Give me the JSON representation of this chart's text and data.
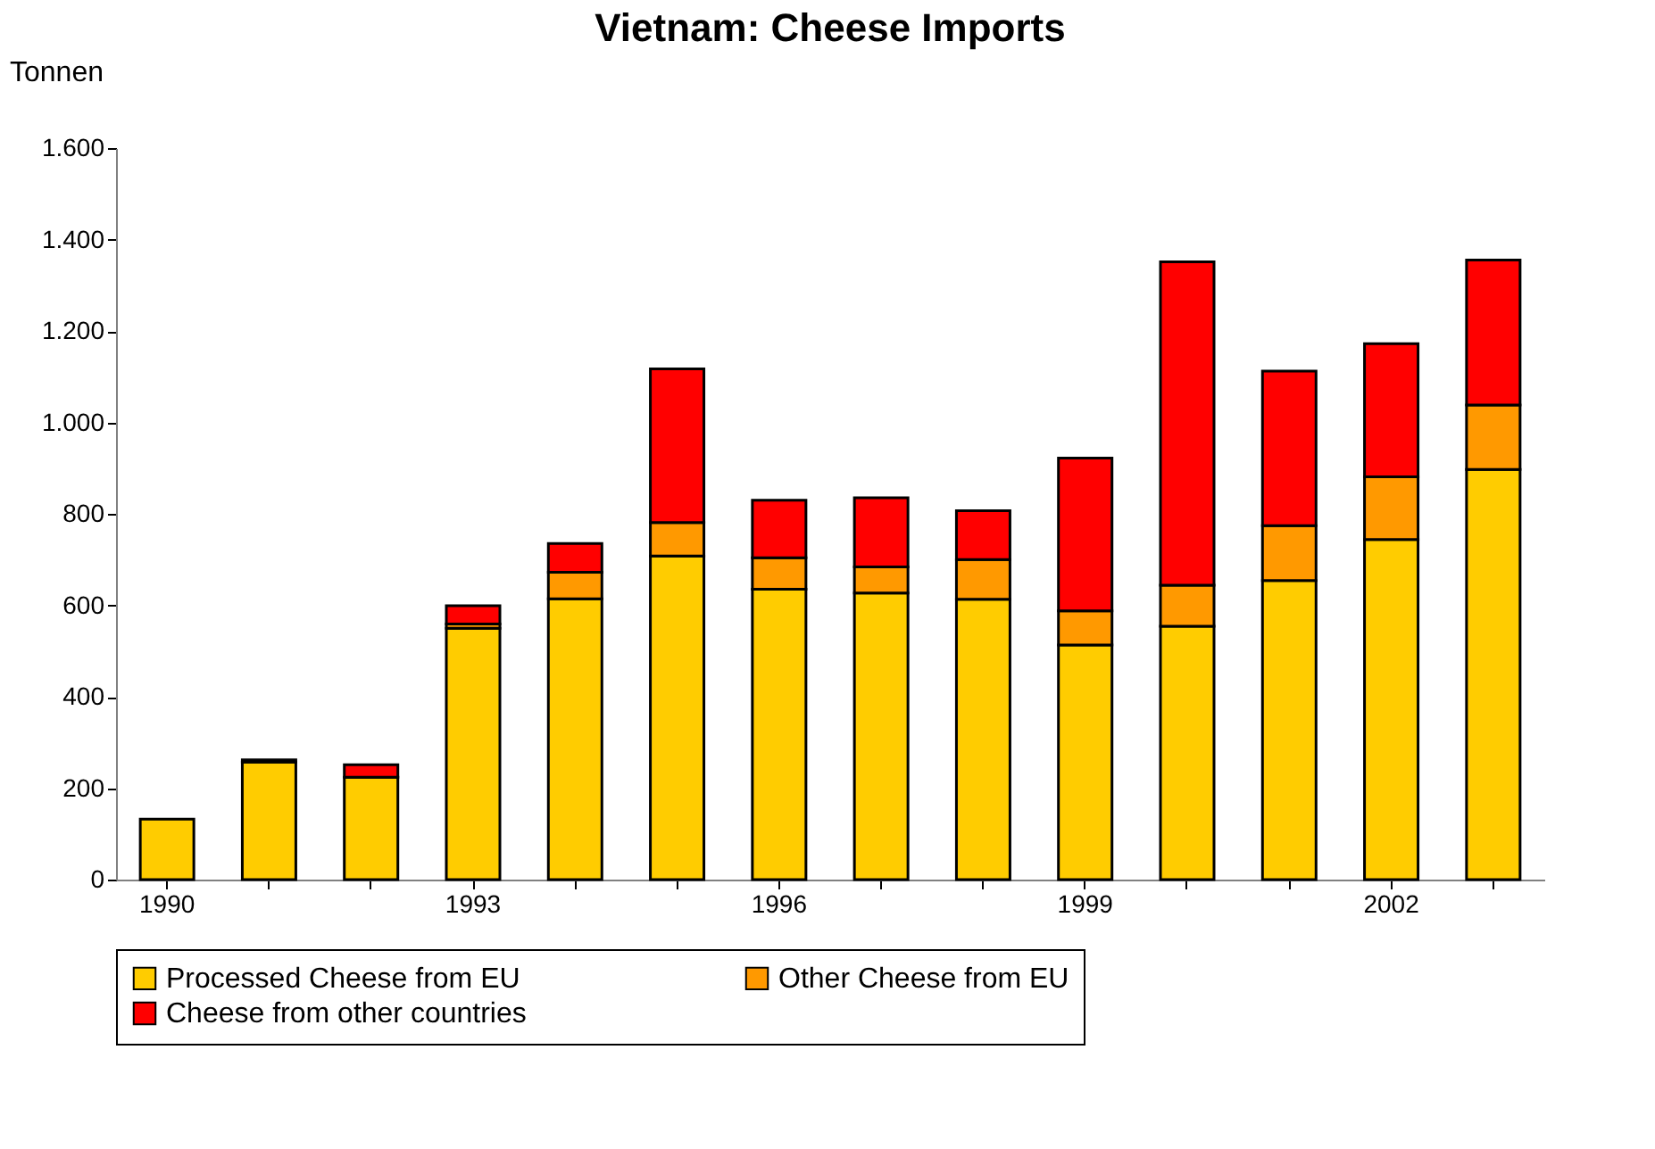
{
  "chart_data": {
    "type": "bar",
    "title": "Vietnam: Cheese Imports",
    "ylabel": "Tonnen",
    "categories": [
      "1990",
      null,
      null,
      "1993",
      null,
      null,
      "1996",
      null,
      null,
      "1999",
      null,
      null,
      "2002",
      null
    ],
    "stacked": true,
    "series": [
      {
        "name": "Processed Cheese from EU",
        "color": "#ffcc00",
        "values": [
          132,
          257,
          224,
          550,
          614,
          708,
          635,
          627,
          613,
          513,
          554,
          654,
          744,
          897
        ]
      },
      {
        "name": "Other Cheese from EU",
        "color": "#ff9900",
        "values": [
          null,
          5,
          null,
          9,
          58,
          73,
          69,
          57,
          87,
          75,
          90,
          120,
          137,
          141
        ]
      },
      {
        "name": "Cheese from other countries",
        "color": "#ff0000",
        "values": [
          null,
          null,
          27,
          40,
          63,
          336,
          126,
          151,
          107,
          334,
          707,
          338,
          291,
          317
        ]
      }
    ],
    "ylim": [
      0,
      1600
    ],
    "yticks": [
      0,
      200,
      400,
      600,
      800,
      {
        "value": 1000,
        "label": "1.000"
      },
      {
        "value": 1200,
        "label": "1.200"
      },
      {
        "value": 1400,
        "label": "1.400"
      },
      {
        "value": 1600,
        "label": "1.600"
      }
    ],
    "grid": false,
    "legend": "bottom"
  }
}
